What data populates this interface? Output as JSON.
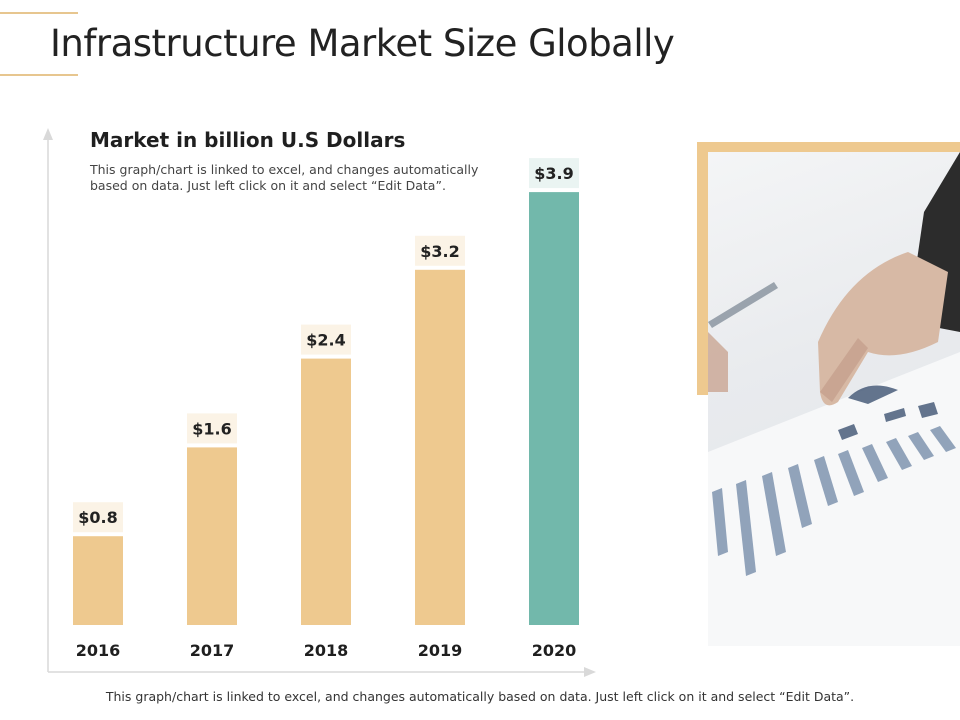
{
  "page": {
    "title": "Infrastructure Market Size Globally",
    "footer_note": "This graph/chart is linked to excel, and changes automatically based on data. Just left click on it and select “Edit Data”."
  },
  "colors": {
    "accent": "#e7c68f",
    "bar_default": "#eec98f",
    "bar_highlight": "#72b8ab",
    "label_bg": "#fbf3e6",
    "label_bg_highlight": "#eaf4f2"
  },
  "photo": {
    "icon": "business-analysis-photo"
  },
  "chart_data": {
    "type": "bar",
    "title": "Market in billion U.S Dollars",
    "note": "This graph/chart is linked to excel, and changes automatically based on data. Just left click on it and select “Edit Data”.",
    "categories": [
      "2016",
      "2017",
      "2018",
      "2019",
      "2020"
    ],
    "values": [
      0.8,
      1.6,
      2.4,
      3.2,
      3.9
    ],
    "value_labels": [
      "$0.8",
      "$1.6",
      "$2.4",
      "$3.2",
      "$3.9"
    ],
    "highlight_index": 4,
    "xlabel": "",
    "ylabel": "",
    "ylim": [
      0,
      4.2
    ],
    "grid": false
  }
}
